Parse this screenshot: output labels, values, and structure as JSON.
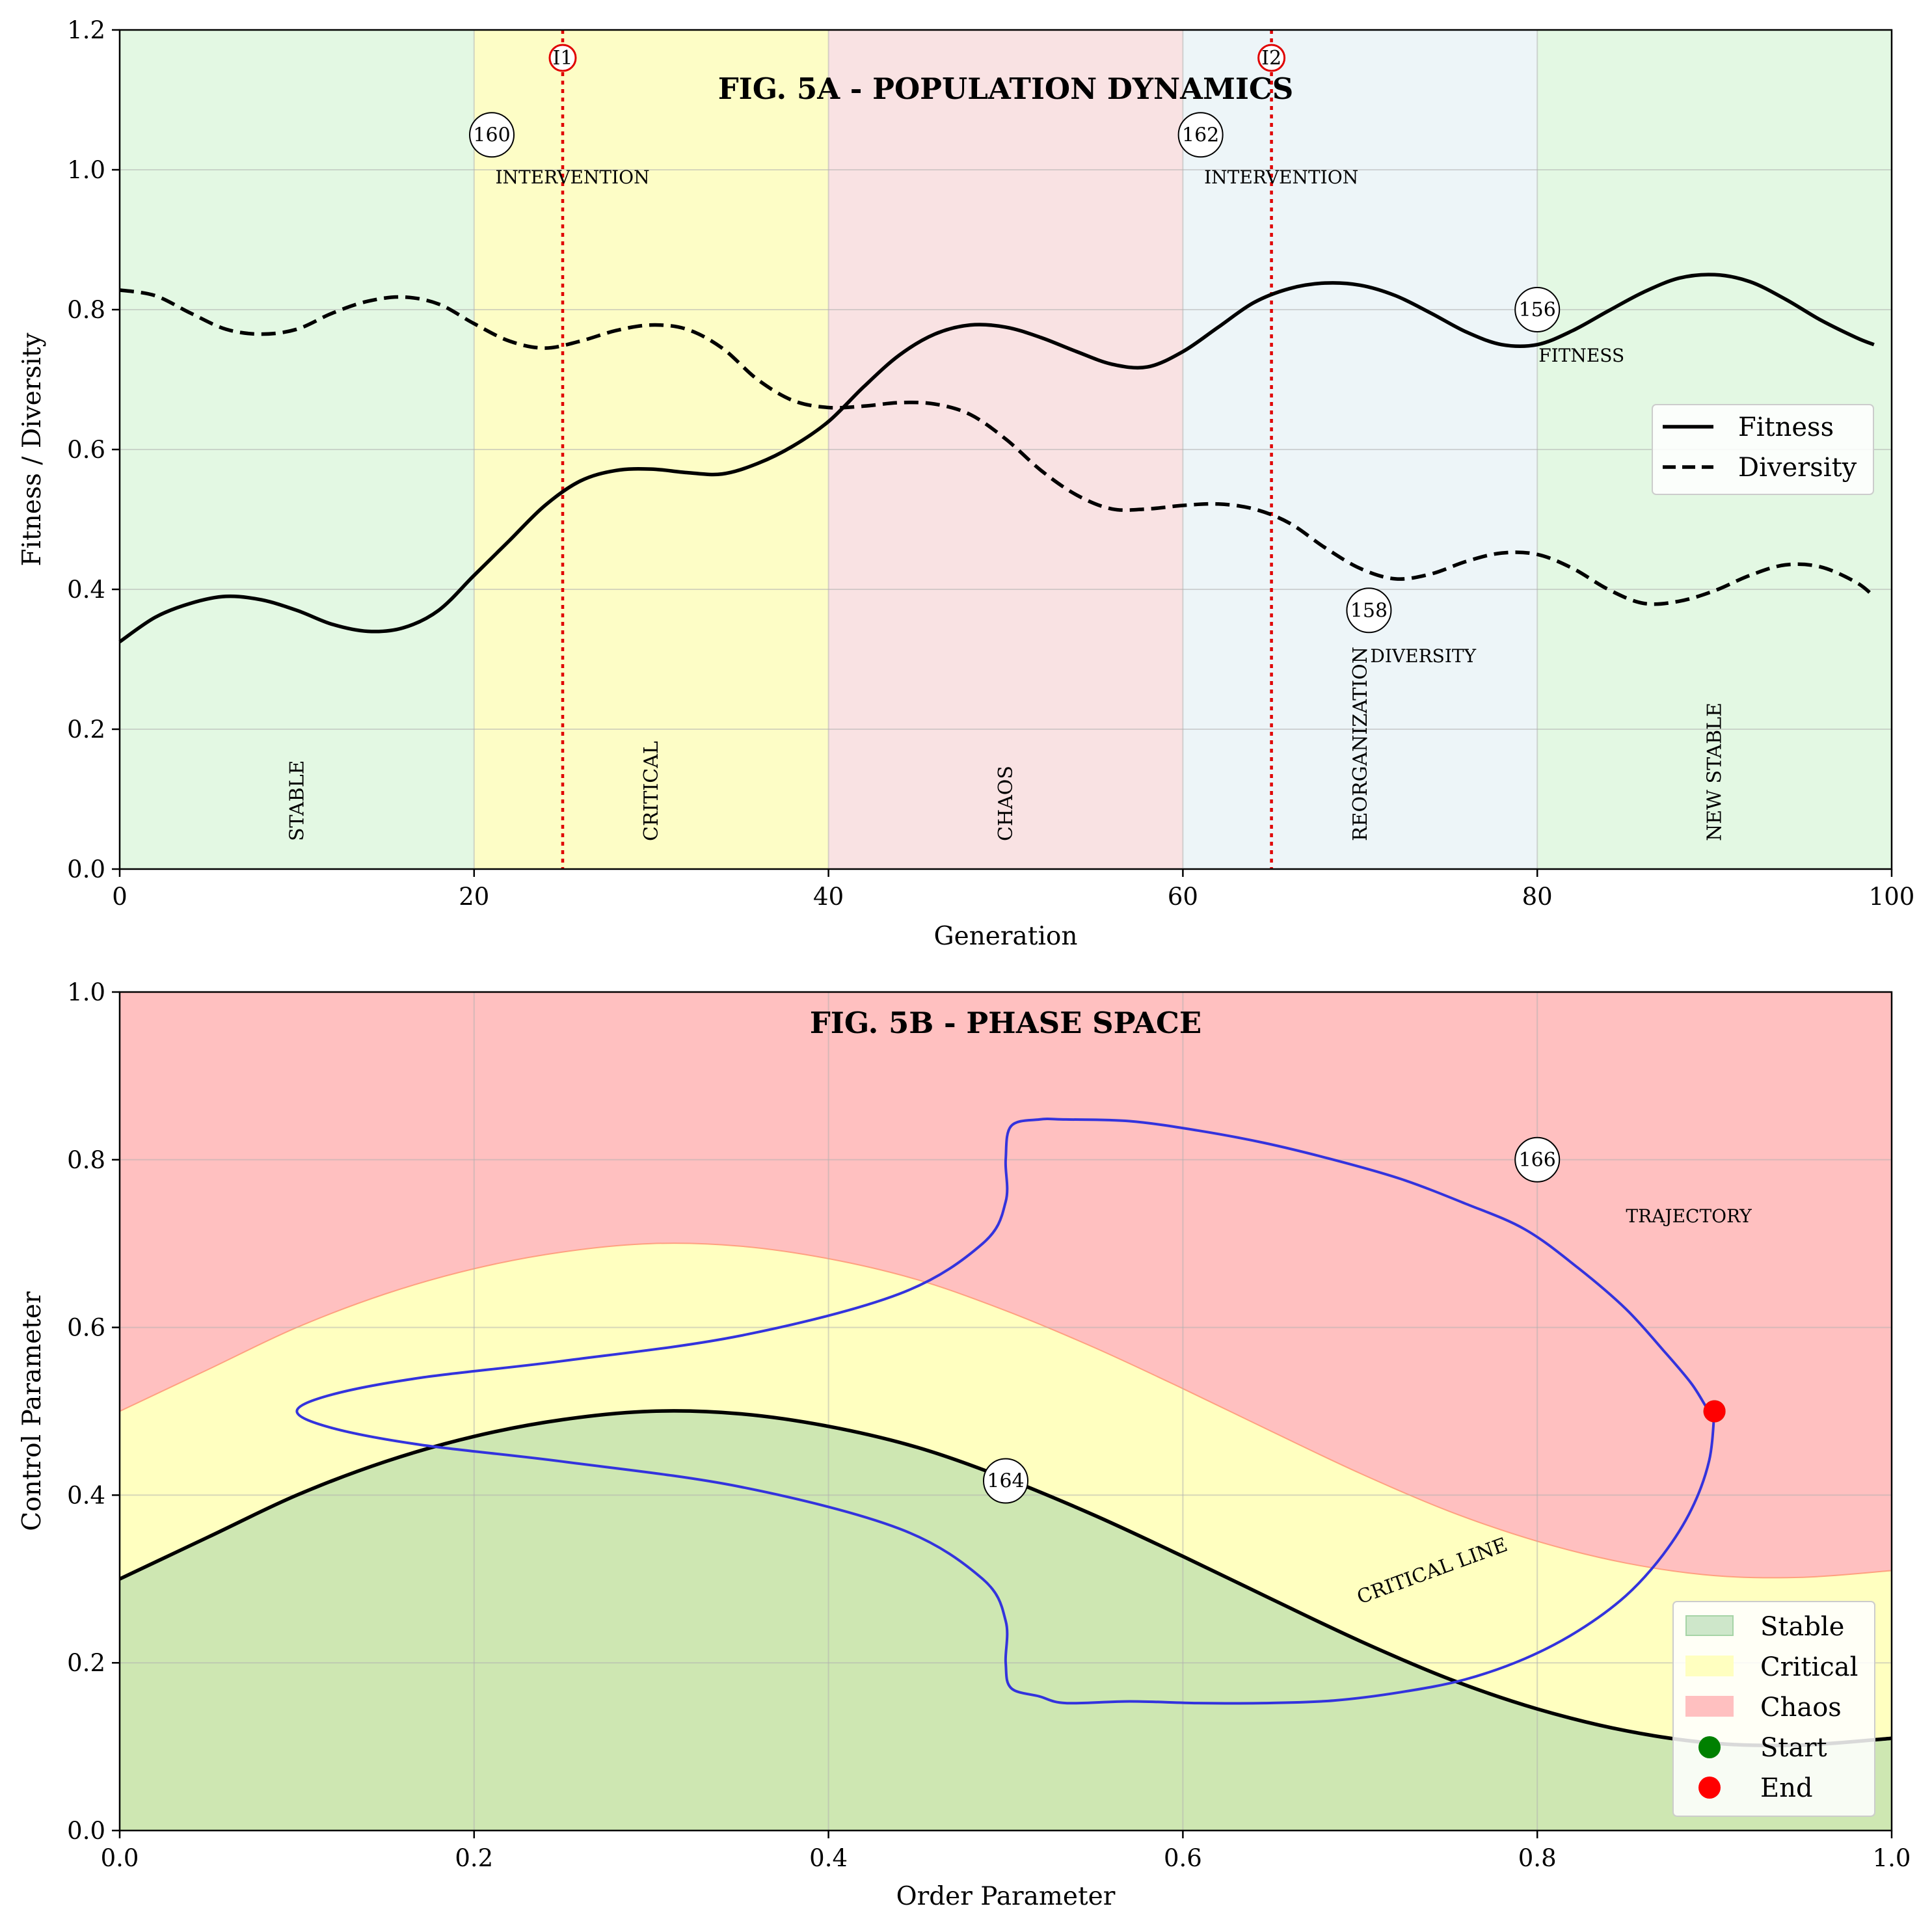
{
  "chart_data": [
    {
      "type": "line",
      "title": "FIG. 5A - POPULATION DYNAMICS",
      "xlabel": "Generation",
      "ylabel": "Fitness / Diversity",
      "xlim": [
        0,
        100
      ],
      "ylim": [
        0,
        1.2
      ],
      "xticks": [
        "0",
        "20",
        "40",
        "60",
        "80",
        "100"
      ],
      "yticks": [
        "0.0",
        "0.2",
        "0.4",
        "0.6",
        "0.8",
        "1.0",
        "1.2"
      ],
      "grid": true,
      "legend_position": "center-right",
      "phases": [
        {
          "label": "STABLE",
          "x0": 0,
          "x1": 20,
          "color": "#e3f8e3"
        },
        {
          "label": "CRITICAL",
          "x0": 20,
          "x1": 40,
          "color": "#fdfdc6"
        },
        {
          "label": "CHAOS",
          "x0": 40,
          "x1": 60,
          "color": "#f9e2e3"
        },
        {
          "label": "REORGANIZATION",
          "x0": 60,
          "x1": 80,
          "color": "#edf5f8"
        },
        {
          "label": "NEW STABLE",
          "x0": 80,
          "x1": 100,
          "color": "#e3f8e3"
        }
      ],
      "x": [
        0,
        2,
        4,
        6,
        8,
        10,
        12,
        14,
        16,
        18,
        20,
        22,
        24,
        26,
        28,
        30,
        32,
        34,
        36,
        38,
        40,
        42,
        44,
        46,
        48,
        50,
        52,
        54,
        56,
        58,
        60,
        62,
        64,
        66,
        68,
        70,
        72,
        74,
        76,
        78,
        80,
        82,
        84,
        86,
        88,
        90,
        92,
        94,
        96,
        98,
        99
      ],
      "series": [
        {
          "name": "Fitness",
          "style": "solid",
          "color": "#000000",
          "values": [
            0.325,
            0.36,
            0.38,
            0.39,
            0.385,
            0.37,
            0.35,
            0.34,
            0.345,
            0.37,
            0.42,
            0.47,
            0.52,
            0.555,
            0.57,
            0.572,
            0.567,
            0.565,
            0.58,
            0.605,
            0.64,
            0.69,
            0.735,
            0.765,
            0.778,
            0.775,
            0.76,
            0.74,
            0.722,
            0.718,
            0.74,
            0.775,
            0.81,
            0.83,
            0.838,
            0.835,
            0.82,
            0.795,
            0.768,
            0.75,
            0.75,
            0.77,
            0.798,
            0.825,
            0.845,
            0.85,
            0.84,
            0.815,
            0.785,
            0.76,
            0.75
          ]
        },
        {
          "name": "Diversity",
          "style": "dashed",
          "color": "#000000",
          "values": [
            0.828,
            0.82,
            0.795,
            0.772,
            0.765,
            0.772,
            0.795,
            0.812,
            0.818,
            0.808,
            0.78,
            0.755,
            0.745,
            0.755,
            0.77,
            0.778,
            0.772,
            0.745,
            0.7,
            0.67,
            0.66,
            0.662,
            0.667,
            0.665,
            0.65,
            0.615,
            0.57,
            0.535,
            0.515,
            0.515,
            0.52,
            0.522,
            0.515,
            0.495,
            0.46,
            0.43,
            0.415,
            0.422,
            0.44,
            0.452,
            0.45,
            0.43,
            0.4,
            0.38,
            0.383,
            0.398,
            0.42,
            0.435,
            0.432,
            0.41,
            0.39
          ]
        }
      ],
      "interventions": [
        {
          "id": "I1",
          "x": 25,
          "label": "INTERVENTION",
          "ref": "160"
        },
        {
          "id": "I2",
          "x": 65,
          "label": "INTERVENTION",
          "ref": "162"
        }
      ],
      "annotations": [
        {
          "ref": "156",
          "label": "FITNESS",
          "x": 80,
          "y": 0.8
        },
        {
          "ref": "158",
          "label": "DIVERSITY",
          "x": 70.5,
          "y": 0.37
        }
      ]
    },
    {
      "type": "area",
      "title": "FIG. 5B - PHASE SPACE",
      "xlabel": "Order Parameter",
      "ylabel": "Control Parameter",
      "xlim": [
        0,
        1
      ],
      "ylim": [
        0,
        1
      ],
      "xticks": [
        "0.0",
        "0.2",
        "0.4",
        "0.6",
        "0.8",
        "1.0"
      ],
      "yticks": [
        "0.0",
        "0.2",
        "0.4",
        "0.6",
        "0.8",
        "1.0"
      ],
      "grid": true,
      "legend_position": "lower-right",
      "regions": [
        {
          "name": "Stable",
          "color": "#a6d4a6"
        },
        {
          "name": "Critical",
          "color": "#ffffc0"
        },
        {
          "name": "Chaos",
          "color": "#ffc0c0"
        }
      ],
      "critical_line": {
        "label": "CRITICAL LINE",
        "ref": "164",
        "x": [
          0.0,
          0.05,
          0.1,
          0.15,
          0.2,
          0.25,
          0.3,
          0.35,
          0.4,
          0.45,
          0.5,
          0.55,
          0.6,
          0.65,
          0.7,
          0.75,
          0.8,
          0.85,
          0.9,
          0.95,
          1.0
        ],
        "y": [
          0.3,
          0.35,
          0.4,
          0.44,
          0.47,
          0.49,
          0.5,
          0.497,
          0.482,
          0.457,
          0.42,
          0.376,
          0.327,
          0.276,
          0.226,
          0.181,
          0.145,
          0.119,
          0.104,
          0.102,
          0.11
        ]
      },
      "critical_upper": {
        "x": [
          0.0,
          0.05,
          0.1,
          0.15,
          0.2,
          0.25,
          0.3,
          0.35,
          0.4,
          0.45,
          0.5,
          0.55,
          0.6,
          0.65,
          0.7,
          0.75,
          0.8,
          0.85,
          0.9,
          0.95,
          1.0
        ],
        "y": [
          0.5,
          0.55,
          0.6,
          0.64,
          0.67,
          0.69,
          0.7,
          0.697,
          0.682,
          0.657,
          0.62,
          0.576,
          0.527,
          0.476,
          0.426,
          0.381,
          0.345,
          0.319,
          0.304,
          0.302,
          0.31
        ]
      },
      "trajectory": {
        "name": "TRAJECTORY",
        "ref": "166",
        "color": "#3333dd",
        "x": [
          0.9,
          0.897,
          0.887,
          0.871,
          0.85,
          0.823,
          0.793,
          0.759,
          0.723,
          0.685,
          0.646,
          0.608,
          0.57,
          0.534,
          0.519,
          0.503,
          0.5,
          0.5,
          0.487,
          0.44,
          0.35,
          0.25,
          0.17,
          0.12,
          0.1,
          0.12,
          0.17,
          0.25,
          0.35,
          0.44,
          0.487,
          0.5,
          0.5,
          0.503,
          0.519,
          0.534,
          0.57,
          0.608,
          0.646,
          0.685,
          0.723,
          0.759,
          0.793,
          0.823,
          0.85,
          0.871,
          0.887,
          0.897,
          0.9
        ],
        "y": [
          0.5,
          0.441,
          0.383,
          0.329,
          0.28,
          0.238,
          0.205,
          0.18,
          0.165,
          0.155,
          0.152,
          0.152,
          0.154,
          0.152,
          0.16,
          0.17,
          0.2,
          0.25,
          0.3,
          0.36,
          0.41,
          0.44,
          0.46,
          0.48,
          0.5,
          0.52,
          0.54,
          0.56,
          0.59,
          0.64,
          0.7,
          0.75,
          0.8,
          0.84,
          0.848,
          0.848,
          0.846,
          0.835,
          0.82,
          0.8,
          0.777,
          0.748,
          0.717,
          0.671,
          0.622,
          0.573,
          0.533,
          0.5,
          0.5
        ]
      },
      "start_marker": {
        "name": "Start",
        "color": "#008000",
        "x": 0.9,
        "y": 0.5
      },
      "end_marker": {
        "name": "End",
        "color": "#ff0000",
        "x": 0.9,
        "y": 0.5
      }
    }
  ]
}
